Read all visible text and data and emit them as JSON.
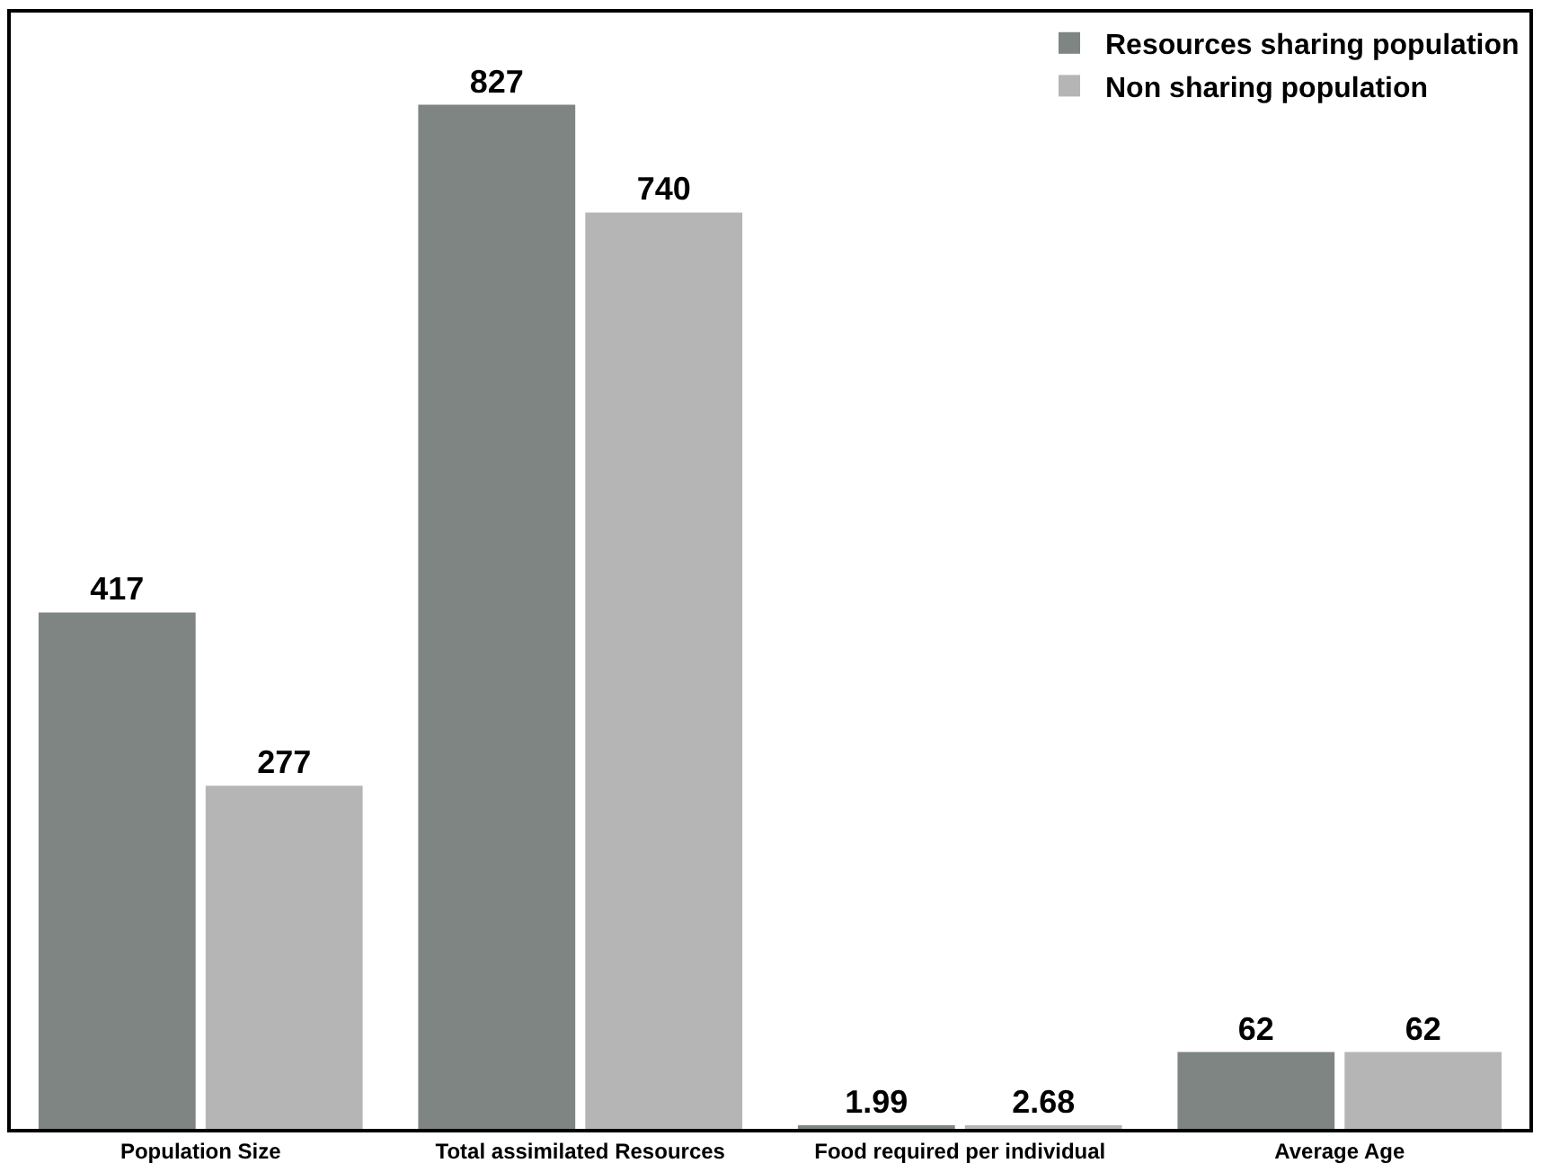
{
  "chart_data": {
    "type": "bar",
    "data_labels": true,
    "tick_labels": "x",
    "categories": [
      "Population Size",
      "Total assimilated Resources",
      "Food required per individual",
      "Average Age"
    ],
    "series": [
      {
        "name": "Resources sharing population",
        "color": "#7e8582",
        "values": [
          417,
          827,
          1.99,
          62
        ]
      },
      {
        "name": "Non sharing population",
        "color": "#b5b5b5",
        "values": [
          277,
          740,
          2.68,
          62
        ]
      }
    ],
    "legend": "top right"
  }
}
